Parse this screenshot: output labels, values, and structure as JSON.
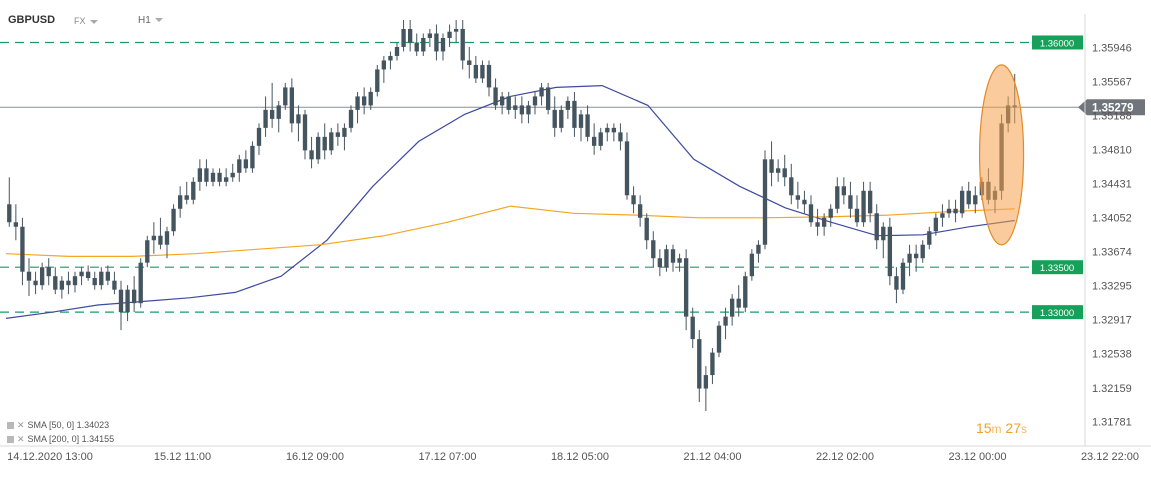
{
  "header": {
    "symbol": "GBPUSD",
    "market": "FX",
    "timeframe": "H1"
  },
  "indicators": [
    {
      "label": "SMA [50, 0]",
      "value": "1.34023",
      "color": "#3d4a9e"
    },
    {
      "label": "SMA [200, 0]",
      "value": "1.34155",
      "color": "#f5a623"
    }
  ],
  "timer": {
    "minutes": "15",
    "minutes_unit": "m",
    "seconds": "27",
    "seconds_unit": "s"
  },
  "colors": {
    "candle": "#455560",
    "sma50": "#3d4a9e",
    "sma200": "#f5a623",
    "level_line": "#1a9a6a",
    "level_label_bg": "#17a05a",
    "current_price_bg": "#6f757a",
    "highlight_ellipse": "#f5a04a"
  },
  "chart_data": {
    "type": "candlestick",
    "y_axis": {
      "min": 1.316,
      "max": 1.3625,
      "tick_labels": [
        "1.35946",
        "1.35567",
        "1.35188",
        "1.34810",
        "1.34431",
        "1.34052",
        "1.33674",
        "1.33295",
        "1.32917",
        "1.32538",
        "1.32159",
        "1.31781"
      ]
    },
    "x_axis": {
      "tick_labels": [
        "14.12.2020 13:00",
        "15.12 11:00",
        "16.12 09:00",
        "17.12 07:00",
        "18.12 05:00",
        "21.12 04:00",
        "22.12 02:00",
        "23.12 00:00",
        "23.12 22:00"
      ]
    },
    "horizontal_levels": [
      {
        "label": "1.36000",
        "value": 1.36
      },
      {
        "label": "1.33500",
        "value": 1.335
      },
      {
        "label": "1.33000",
        "value": 1.33
      }
    ],
    "current_price": {
      "label": "1.35279",
      "value": 1.35279
    },
    "highlight": "ellipse around latest rally",
    "grid": false,
    "series": [
      {
        "name": "SMA [50, 0]",
        "kind": "line",
        "values": [
          1.3293,
          1.33,
          1.3308,
          1.3312,
          1.3316,
          1.3322,
          1.334,
          1.338,
          1.344,
          1.349,
          1.352,
          1.354,
          1.355,
          1.3552,
          1.353,
          1.347,
          1.344,
          1.3416,
          1.34,
          1.3385,
          1.3386,
          1.3395,
          1.3402
        ]
      },
      {
        "name": "SMA [200, 0]",
        "kind": "line",
        "values": [
          1.3365,
          1.3362,
          1.3362,
          1.3365,
          1.337,
          1.3375,
          1.3385,
          1.34,
          1.3418,
          1.341,
          1.3408,
          1.3405,
          1.3405,
          1.3406,
          1.3408,
          1.3412,
          1.3415
        ]
      },
      {
        "name": "GBPUSD H1",
        "kind": "ohlc",
        "ohlc": [
          [
            1.342,
            1.345,
            1.3395,
            1.34
          ],
          [
            1.34,
            1.342,
            1.338,
            1.3395
          ],
          [
            1.3395,
            1.3405,
            1.333,
            1.3345
          ],
          [
            1.3345,
            1.336,
            1.3318,
            1.3335
          ],
          [
            1.3335,
            1.3345,
            1.332,
            1.333
          ],
          [
            1.333,
            1.3355,
            1.3325,
            1.335
          ],
          [
            1.335,
            1.336,
            1.333,
            1.334
          ],
          [
            1.334,
            1.335,
            1.332,
            1.3325
          ],
          [
            1.3325,
            1.334,
            1.3315,
            1.3335
          ],
          [
            1.3335,
            1.3345,
            1.332,
            1.333
          ],
          [
            1.333,
            1.3345,
            1.3322,
            1.334
          ],
          [
            1.334,
            1.335,
            1.333,
            1.3345
          ],
          [
            1.3345,
            1.3352,
            1.3335,
            1.3338
          ],
          [
            1.3338,
            1.3345,
            1.3325,
            1.333
          ],
          [
            1.333,
            1.335,
            1.3325,
            1.3345
          ],
          [
            1.3345,
            1.3352,
            1.333,
            1.3335
          ],
          [
            1.3335,
            1.3345,
            1.332,
            1.3325
          ],
          [
            1.3325,
            1.3335,
            1.328,
            1.33
          ],
          [
            1.33,
            1.333,
            1.329,
            1.3325
          ],
          [
            1.3325,
            1.334,
            1.33,
            1.331
          ],
          [
            1.331,
            1.336,
            1.3305,
            1.3355
          ],
          [
            1.3355,
            1.3385,
            1.335,
            1.338
          ],
          [
            1.338,
            1.34,
            1.3365,
            1.3385
          ],
          [
            1.3385,
            1.3405,
            1.337,
            1.3375
          ],
          [
            1.3375,
            1.3395,
            1.336,
            1.339
          ],
          [
            1.339,
            1.342,
            1.3385,
            1.3415
          ],
          [
            1.3415,
            1.344,
            1.3405,
            1.343
          ],
          [
            1.343,
            1.3445,
            1.342,
            1.3425
          ],
          [
            1.3425,
            1.345,
            1.342,
            1.3445
          ],
          [
            1.3445,
            1.347,
            1.3435,
            1.346
          ],
          [
            1.346,
            1.347,
            1.344,
            1.3445
          ],
          [
            1.3445,
            1.346,
            1.344,
            1.3455
          ],
          [
            1.3455,
            1.346,
            1.344,
            1.3445
          ],
          [
            1.3445,
            1.346,
            1.344,
            1.345
          ],
          [
            1.345,
            1.3465,
            1.3445,
            1.3455
          ],
          [
            1.3455,
            1.3475,
            1.3445,
            1.347
          ],
          [
            1.347,
            1.348,
            1.3455,
            1.346
          ],
          [
            1.346,
            1.349,
            1.3455,
            1.3485
          ],
          [
            1.3485,
            1.351,
            1.3475,
            1.3505
          ],
          [
            1.3505,
            1.354,
            1.3495,
            1.3525
          ],
          [
            1.3525,
            1.3555,
            1.3505,
            1.3515
          ],
          [
            1.3515,
            1.3535,
            1.35,
            1.353
          ],
          [
            1.353,
            1.3555,
            1.3525,
            1.355
          ],
          [
            1.355,
            1.356,
            1.35,
            1.351
          ],
          [
            1.351,
            1.353,
            1.349,
            1.352
          ],
          [
            1.352,
            1.3525,
            1.347,
            1.348
          ],
          [
            1.348,
            1.3495,
            1.346,
            1.347
          ],
          [
            1.347,
            1.35,
            1.3465,
            1.3495
          ],
          [
            1.3495,
            1.351,
            1.347,
            1.348
          ],
          [
            1.348,
            1.3505,
            1.3475,
            1.35
          ],
          [
            1.35,
            1.351,
            1.3485,
            1.3495
          ],
          [
            1.3495,
            1.351,
            1.348,
            1.3505
          ],
          [
            1.3505,
            1.353,
            1.35,
            1.3525
          ],
          [
            1.3525,
            1.3545,
            1.351,
            1.354
          ],
          [
            1.354,
            1.355,
            1.352,
            1.353
          ],
          [
            1.353,
            1.355,
            1.3525,
            1.3545
          ],
          [
            1.3545,
            1.3575,
            1.354,
            1.357
          ],
          [
            1.357,
            1.3585,
            1.3555,
            1.358
          ],
          [
            1.358,
            1.359,
            1.357,
            1.3585
          ],
          [
            1.3585,
            1.36,
            1.358,
            1.3595
          ],
          [
            1.3595,
            1.3625,
            1.359,
            1.3615
          ],
          [
            1.3615,
            1.3625,
            1.359,
            1.36
          ],
          [
            1.36,
            1.361,
            1.3585,
            1.359
          ],
          [
            1.359,
            1.361,
            1.3585,
            1.3605
          ],
          [
            1.3605,
            1.3615,
            1.3595,
            1.361
          ],
          [
            1.361,
            1.362,
            1.358,
            1.359
          ],
          [
            1.359,
            1.361,
            1.358,
            1.3605
          ],
          [
            1.3605,
            1.362,
            1.3595,
            1.3612
          ],
          [
            1.3612,
            1.3625,
            1.36,
            1.3615
          ],
          [
            1.3615,
            1.3625,
            1.357,
            1.358
          ],
          [
            1.358,
            1.3595,
            1.356,
            1.3575
          ],
          [
            1.3575,
            1.3585,
            1.3555,
            1.356
          ],
          [
            1.356,
            1.358,
            1.3555,
            1.3575
          ],
          [
            1.3575,
            1.358,
            1.354,
            1.355
          ],
          [
            1.355,
            1.356,
            1.3525,
            1.353
          ],
          [
            1.353,
            1.3545,
            1.352,
            1.354
          ],
          [
            1.354,
            1.3545,
            1.352,
            1.3525
          ],
          [
            1.3525,
            1.354,
            1.3515,
            1.353
          ],
          [
            1.353,
            1.354,
            1.351,
            1.352
          ],
          [
            1.352,
            1.3535,
            1.351,
            1.353
          ],
          [
            1.353,
            1.3545,
            1.352,
            1.354
          ],
          [
            1.354,
            1.3555,
            1.353,
            1.355
          ],
          [
            1.355,
            1.3555,
            1.352,
            1.3525
          ],
          [
            1.3525,
            1.354,
            1.3495,
            1.3505
          ],
          [
            1.3505,
            1.353,
            1.35,
            1.3525
          ],
          [
            1.3525,
            1.354,
            1.3515,
            1.3535
          ],
          [
            1.3535,
            1.3545,
            1.3495,
            1.3505
          ],
          [
            1.3505,
            1.3525,
            1.349,
            1.352
          ],
          [
            1.352,
            1.353,
            1.349,
            1.3495
          ],
          [
            1.3495,
            1.351,
            1.3475,
            1.3485
          ],
          [
            1.3485,
            1.3505,
            1.348,
            1.35
          ],
          [
            1.35,
            1.351,
            1.349,
            1.3505
          ],
          [
            1.3505,
            1.351,
            1.349,
            1.35
          ],
          [
            1.35,
            1.351,
            1.348,
            1.349
          ],
          [
            1.349,
            1.35,
            1.3425,
            1.343
          ],
          [
            1.343,
            1.344,
            1.341,
            1.342
          ],
          [
            1.342,
            1.343,
            1.3395,
            1.3405
          ],
          [
            1.3405,
            1.341,
            1.337,
            1.338
          ],
          [
            1.338,
            1.339,
            1.335,
            1.336
          ],
          [
            1.336,
            1.337,
            1.334,
            1.335
          ],
          [
            1.335,
            1.3375,
            1.3345,
            1.337
          ],
          [
            1.337,
            1.3375,
            1.3345,
            1.3355
          ],
          [
            1.3355,
            1.3365,
            1.3345,
            1.336
          ],
          [
            1.336,
            1.337,
            1.328,
            1.3295
          ],
          [
            1.3295,
            1.3305,
            1.326,
            1.327
          ],
          [
            1.327,
            1.328,
            1.32,
            1.3215
          ],
          [
            1.3215,
            1.324,
            1.319,
            1.323
          ],
          [
            1.323,
            1.326,
            1.322,
            1.3255
          ],
          [
            1.3255,
            1.329,
            1.325,
            1.3285
          ],
          [
            1.3285,
            1.3305,
            1.327,
            1.3295
          ],
          [
            1.3295,
            1.332,
            1.3285,
            1.3315
          ],
          [
            1.3315,
            1.333,
            1.3295,
            1.3305
          ],
          [
            1.3305,
            1.3345,
            1.33,
            1.334
          ],
          [
            1.334,
            1.337,
            1.3335,
            1.3365
          ],
          [
            1.3365,
            1.338,
            1.3355,
            1.3375
          ],
          [
            1.3375,
            1.348,
            1.337,
            1.347
          ],
          [
            1.347,
            1.349,
            1.344,
            1.3455
          ],
          [
            1.3455,
            1.347,
            1.3445,
            1.346
          ],
          [
            1.346,
            1.3475,
            1.344,
            1.345
          ],
          [
            1.345,
            1.3465,
            1.342,
            1.343
          ],
          [
            1.343,
            1.3445,
            1.3415,
            1.3425
          ],
          [
            1.3425,
            1.3435,
            1.341,
            1.342
          ],
          [
            1.342,
            1.343,
            1.3395,
            1.34
          ],
          [
            1.34,
            1.3415,
            1.3385,
            1.3395
          ],
          [
            1.3395,
            1.341,
            1.3385,
            1.3405
          ],
          [
            1.3405,
            1.342,
            1.3395,
            1.3415
          ],
          [
            1.3415,
            1.345,
            1.341,
            1.344
          ],
          [
            1.344,
            1.345,
            1.342,
            1.343
          ],
          [
            1.343,
            1.3445,
            1.3405,
            1.3415
          ],
          [
            1.3415,
            1.343,
            1.3395,
            1.34
          ],
          [
            1.34,
            1.3445,
            1.3395,
            1.3435
          ],
          [
            1.3435,
            1.3445,
            1.34,
            1.341
          ],
          [
            1.341,
            1.342,
            1.337,
            1.338
          ],
          [
            1.338,
            1.34,
            1.336,
            1.3395
          ],
          [
            1.3395,
            1.3405,
            1.333,
            1.334
          ],
          [
            1.334,
            1.335,
            1.331,
            1.3325
          ],
          [
            1.3325,
            1.336,
            1.332,
            1.3355
          ],
          [
            1.3355,
            1.3375,
            1.334,
            1.3365
          ],
          [
            1.3365,
            1.3375,
            1.3345,
            1.336
          ],
          [
            1.336,
            1.338,
            1.3355,
            1.3375
          ],
          [
            1.3375,
            1.3395,
            1.337,
            1.339
          ],
          [
            1.339,
            1.341,
            1.3385,
            1.3405
          ],
          [
            1.3405,
            1.342,
            1.3395,
            1.341
          ],
          [
            1.341,
            1.3425,
            1.3405,
            1.3415
          ],
          [
            1.3415,
            1.3425,
            1.34,
            1.341
          ],
          [
            1.341,
            1.344,
            1.3405,
            1.3435
          ],
          [
            1.3435,
            1.3445,
            1.3415,
            1.342
          ],
          [
            1.342,
            1.344,
            1.341,
            1.343
          ],
          [
            1.343,
            1.345,
            1.3425,
            1.3445
          ],
          [
            1.3445,
            1.346,
            1.342,
            1.3425
          ],
          [
            1.3425,
            1.344,
            1.341,
            1.3435
          ],
          [
            1.3435,
            1.352,
            1.3425,
            1.351
          ],
          [
            1.351,
            1.354,
            1.35,
            1.353
          ],
          [
            1.353,
            1.3565,
            1.351,
            1.3528
          ]
        ]
      }
    ]
  }
}
